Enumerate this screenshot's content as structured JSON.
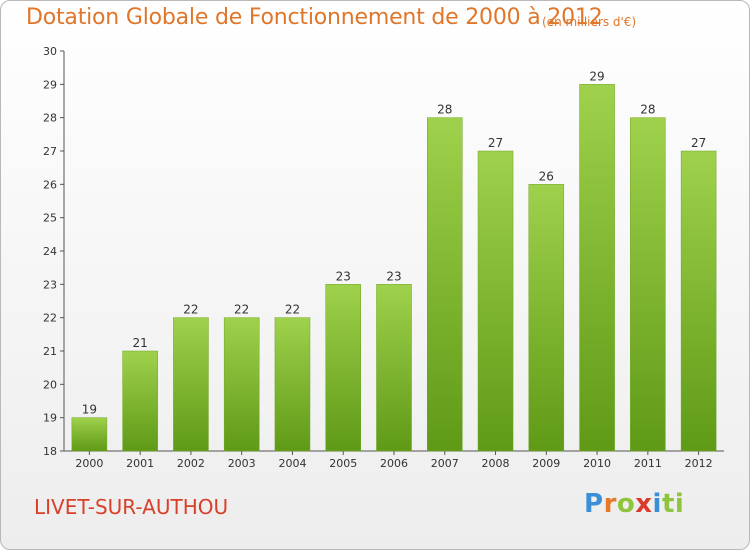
{
  "header": {
    "title": "Dotation Globale de Fonctionnement de 2000 à 2012",
    "subtitle": "(en milliers d'€)"
  },
  "footer": {
    "commune": "LIVET-SUR-AUTHOU",
    "logo_text": "Proxiti",
    "logo_letters": [
      "P",
      "r",
      "o",
      "x",
      "i",
      "ti"
    ]
  },
  "colors": {
    "title": "#e0762a",
    "commune": "#d9402a",
    "bar_top": "#9fd14c",
    "bar_bottom": "#5f9a16"
  },
  "chart_data": {
    "type": "bar",
    "categories": [
      "2000",
      "2001",
      "2002",
      "2003",
      "2004",
      "2005",
      "2006",
      "2007",
      "2008",
      "2009",
      "2010",
      "2011",
      "2012"
    ],
    "values": [
      19,
      21,
      22,
      22,
      22,
      23,
      23,
      28,
      27,
      26,
      29,
      28,
      27
    ],
    "ylim": [
      18,
      30
    ],
    "yticks": [
      18,
      19,
      20,
      21,
      22,
      23,
      24,
      25,
      26,
      27,
      28,
      29,
      30
    ],
    "grid": false,
    "legend": "none"
  }
}
